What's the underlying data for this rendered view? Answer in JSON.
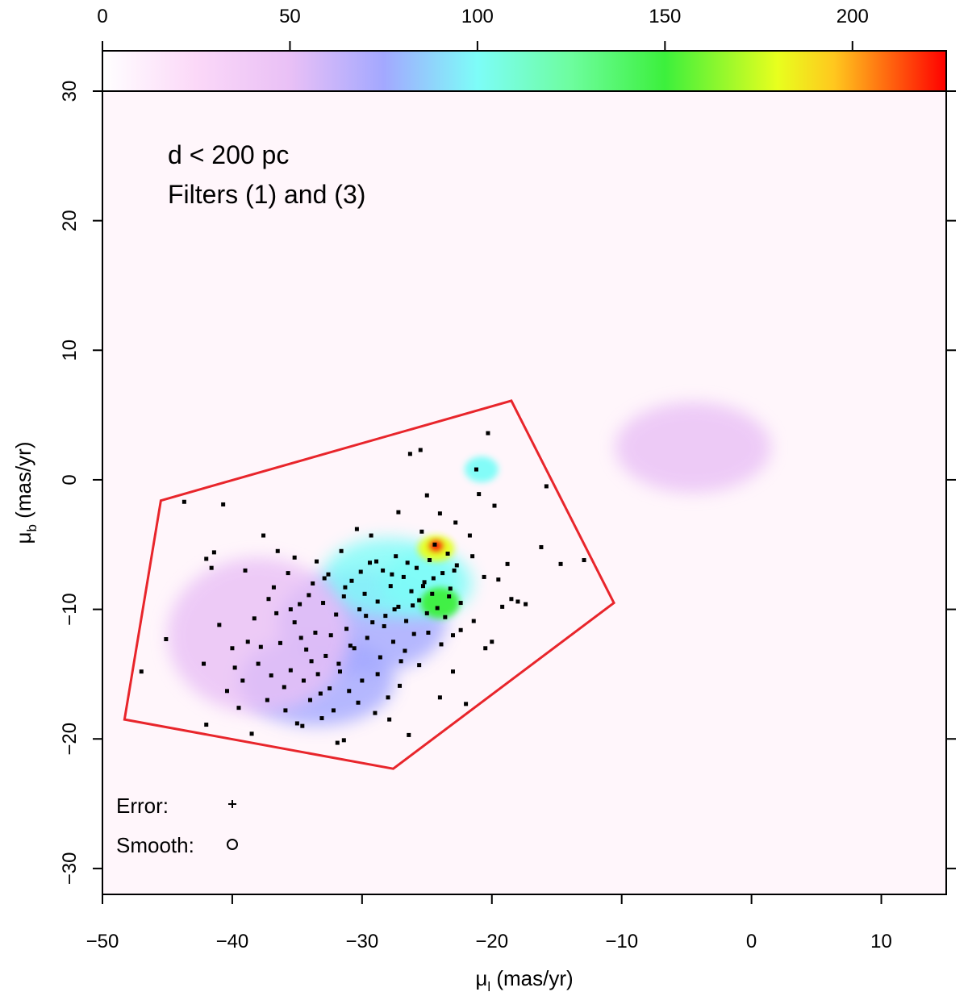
{
  "chart_data": {
    "type": "heatmap",
    "title": "",
    "xlabel": "μl (mas/yr)",
    "ylabel": "μb (mas/yr)",
    "x_label_main": "μ",
    "x_label_sub": "l",
    "x_label_unit": " (mas/yr)",
    "y_label_main": "μ",
    "y_label_sub": "b",
    "y_label_unit": " (mas/yr)",
    "xlim": [
      -50,
      15
    ],
    "ylim": [
      -32,
      30
    ],
    "x_ticks": [
      -50,
      -40,
      -30,
      -20,
      -10,
      0,
      10
    ],
    "y_ticks": [
      -30,
      -20,
      -10,
      0,
      10,
      20,
      30
    ],
    "colorbar": {
      "range": [
        0,
        225
      ],
      "ticks": [
        0,
        50,
        100,
        150,
        200
      ],
      "stops": [
        {
          "value": 0,
          "color": "#ffffff"
        },
        {
          "value": 25,
          "color": "#fbd8f8"
        },
        {
          "value": 50,
          "color": "#e9c0f6"
        },
        {
          "value": 75,
          "color": "#a3a8ff"
        },
        {
          "value": 100,
          "color": "#7dfdf8"
        },
        {
          "value": 125,
          "color": "#6dfd9e"
        },
        {
          "value": 150,
          "color": "#3cf03c"
        },
        {
          "value": 180,
          "color": "#e8ff1e"
        },
        {
          "value": 195,
          "color": "#ffc81e"
        },
        {
          "value": 225,
          "color": "#ff0000"
        }
      ]
    },
    "annotations": [
      "d < 200 pc",
      "Filters (1) and (3)"
    ],
    "legend": {
      "error_label": "Error:",
      "smooth_label": "Smooth:"
    },
    "polygon": [
      [
        -45.5,
        -1.6
      ],
      [
        -18.5,
        6.1
      ],
      [
        -10.6,
        -9.5
      ],
      [
        -27.6,
        -22.3
      ],
      [
        -48.3,
        -18.5
      ]
    ],
    "density_blobs": [
      {
        "x": -33.5,
        "y": -15.5,
        "rx": 6,
        "ry": 3.5,
        "value": 75
      },
      {
        "x": -30,
        "y": -11,
        "rx": 6.5,
        "ry": 4,
        "value": 70
      },
      {
        "x": -28,
        "y": -7.5,
        "rx": 5,
        "ry": 3,
        "value": 78
      },
      {
        "x": -25,
        "y": -8,
        "rx": 3.5,
        "ry": 2.5,
        "value": 100
      },
      {
        "x": -24,
        "y": -9.5,
        "rx": 1.5,
        "ry": 1.2,
        "value": 150
      },
      {
        "x": -24.3,
        "y": -5.3,
        "rx": 1.4,
        "ry": 1,
        "value": 170
      },
      {
        "x": -24.3,
        "y": -5.1,
        "rx": 0.5,
        "ry": 0.4,
        "value": 225
      },
      {
        "x": -20.8,
        "y": 0.8,
        "rx": 1.3,
        "ry": 1,
        "value": 90
      },
      {
        "x": -4.5,
        "y": 2.5,
        "rx": 6,
        "ry": 3.5,
        "value": 32
      },
      {
        "x": -38,
        "y": -12,
        "rx": 7,
        "ry": 6,
        "value": 30
      }
    ],
    "points": [
      [
        -47.0,
        -14.8
      ],
      [
        -45.1,
        -12.3
      ],
      [
        -43.7,
        -1.7
      ],
      [
        -42.0,
        -6.1
      ],
      [
        -41.6,
        -6.8
      ],
      [
        -41.4,
        -5.6
      ],
      [
        -41.0,
        -11.2
      ],
      [
        -40.7,
        -1.9
      ],
      [
        -40.4,
        -16.3
      ],
      [
        -40.0,
        -13.0
      ],
      [
        -39.5,
        -17.6
      ],
      [
        -39.0,
        -7.0
      ],
      [
        -38.8,
        -12.5
      ],
      [
        -38.5,
        -19.6
      ],
      [
        -38.0,
        -14.2
      ],
      [
        -37.6,
        -4.3
      ],
      [
        -37.2,
        -9.2
      ],
      [
        -37.0,
        -15.1
      ],
      [
        -36.6,
        -10.3
      ],
      [
        -36.3,
        -12.6
      ],
      [
        -36.0,
        -16.0
      ],
      [
        -35.7,
        -7.2
      ],
      [
        -35.5,
        -14.7
      ],
      [
        -35.2,
        -11.0
      ],
      [
        -35.0,
        -18.8
      ],
      [
        -34.8,
        -9.6
      ],
      [
        -34.5,
        -15.5
      ],
      [
        -34.3,
        -13.1
      ],
      [
        -34.0,
        -17.0
      ],
      [
        -33.8,
        -8.0
      ],
      [
        -33.6,
        -11.8
      ],
      [
        -33.4,
        -15.0
      ],
      [
        -33.2,
        -16.5
      ],
      [
        -33.0,
        -9.5
      ],
      [
        -32.8,
        -13.6
      ],
      [
        -32.6,
        -7.3
      ],
      [
        -32.4,
        -12.0
      ],
      [
        -32.2,
        -17.8
      ],
      [
        -32.0,
        -10.4
      ],
      [
        -31.8,
        -14.2
      ],
      [
        -31.6,
        -5.5
      ],
      [
        -31.4,
        -9.0
      ],
      [
        -31.2,
        -11.5
      ],
      [
        -31.0,
        -16.3
      ],
      [
        -30.8,
        -7.8
      ],
      [
        -30.6,
        -13.0
      ],
      [
        -30.4,
        -3.8
      ],
      [
        -30.2,
        -10.0
      ],
      [
        -30.0,
        -15.5
      ],
      [
        -29.8,
        -8.8
      ],
      [
        -29.6,
        -12.2
      ],
      [
        -29.4,
        -6.4
      ],
      [
        -29.2,
        -11.0
      ],
      [
        -29.0,
        -18.0
      ],
      [
        -28.8,
        -9.4
      ],
      [
        -28.6,
        -13.7
      ],
      [
        -28.4,
        -7.0
      ],
      [
        -28.2,
        -10.5
      ],
      [
        -28.0,
        -16.8
      ],
      [
        -27.8,
        -8.2
      ],
      [
        -27.6,
        -12.5
      ],
      [
        -27.4,
        -5.9
      ],
      [
        -27.2,
        -9.8
      ],
      [
        -27.0,
        -14.0
      ],
      [
        -26.8,
        -7.5
      ],
      [
        -26.6,
        -10.9
      ],
      [
        -26.4,
        -19.7
      ],
      [
        -26.2,
        -8.6
      ],
      [
        -26.0,
        -11.9
      ],
      [
        -25.8,
        -6.8
      ],
      [
        -25.6,
        -9.3
      ],
      [
        -25.4,
        -4.0
      ],
      [
        -25.2,
        -7.9
      ],
      [
        -25.0,
        -10.3
      ],
      [
        -24.8,
        -6.2
      ],
      [
        -24.6,
        -8.8
      ],
      [
        -24.4,
        -5.0
      ],
      [
        -24.2,
        -9.9
      ],
      [
        -24.0,
        -2.6
      ],
      [
        -23.8,
        -7.2
      ],
      [
        -23.6,
        -10.6
      ],
      [
        -23.4,
        -5.7
      ],
      [
        -23.2,
        -8.4
      ],
      [
        -23.0,
        -12.0
      ],
      [
        -22.7,
        -6.6
      ],
      [
        -22.4,
        -9.5
      ],
      [
        -22.0,
        -17.3
      ],
      [
        -21.7,
        -4.3
      ],
      [
        -21.4,
        -10.9
      ],
      [
        -21.0,
        -1.1
      ],
      [
        -20.6,
        -7.5
      ],
      [
        -20.3,
        3.6
      ],
      [
        -20.0,
        -12.5
      ],
      [
        -19.8,
        -2.0
      ],
      [
        -19.2,
        -9.8
      ],
      [
        -18.8,
        -6.5
      ],
      [
        -18.0,
        -9.4
      ],
      [
        -17.4,
        -9.6
      ],
      [
        -16.2,
        -5.2
      ],
      [
        -15.8,
        -0.5
      ],
      [
        -14.7,
        -6.5
      ],
      [
        -12.9,
        -6.2
      ],
      [
        -21.2,
        0.8
      ],
      [
        -25.5,
        2.3
      ],
      [
        -26.3,
        2.0
      ],
      [
        -36.5,
        -5.5
      ],
      [
        -37.8,
        -12.9
      ],
      [
        -39.8,
        -14.5
      ],
      [
        -42.2,
        -14.2
      ],
      [
        -42.0,
        -18.9
      ],
      [
        -34.6,
        -19.0
      ],
      [
        -31.9,
        -20.3
      ],
      [
        -31.4,
        -20.1
      ],
      [
        -27.9,
        -18.5
      ],
      [
        -24.0,
        -16.8
      ],
      [
        -25.6,
        -14.3
      ],
      [
        -23.0,
        -14.8
      ],
      [
        -22.4,
        -11.6
      ],
      [
        -20.5,
        -13.0
      ],
      [
        -19.5,
        -7.7
      ],
      [
        -18.5,
        -9.2
      ],
      [
        -21.5,
        -5.9
      ],
      [
        -22.8,
        -3.3
      ],
      [
        -25.0,
        -1.2
      ],
      [
        -27.2,
        -2.5
      ],
      [
        -29.3,
        -4.3
      ],
      [
        -33.5,
        -6.3
      ],
      [
        -35.2,
        -6.0
      ],
      [
        -36.8,
        -8.3
      ],
      [
        -38.3,
        -10.7
      ],
      [
        -39.2,
        -15.5
      ],
      [
        -37.3,
        -17.0
      ],
      [
        -35.9,
        -17.8
      ],
      [
        -33.1,
        -18.4
      ],
      [
        -30.3,
        -17.2
      ],
      [
        -28.8,
        -15.0
      ],
      [
        -27.1,
        -15.9
      ],
      [
        -26.7,
        -13.2
      ],
      [
        -24.9,
        -11.8
      ],
      [
        -23.9,
        -12.7
      ],
      [
        -23.3,
        -9.0
      ],
      [
        -22.9,
        -7.0
      ],
      [
        -24.5,
        -7.6
      ],
      [
        -25.3,
        -8.2
      ],
      [
        -26.1,
        -9.7
      ],
      [
        -27.5,
        -10.0
      ],
      [
        -28.3,
        -11.3
      ],
      [
        -29.7,
        -10.5
      ],
      [
        -30.9,
        -12.8
      ],
      [
        -31.7,
        -14.8
      ],
      [
        -32.5,
        -16.1
      ],
      [
        -33.9,
        -14.0
      ],
      [
        -34.7,
        -12.2
      ],
      [
        -35.5,
        -10.0
      ],
      [
        -34.1,
        -8.9
      ],
      [
        -32.9,
        -7.6
      ],
      [
        -31.3,
        -8.3
      ],
      [
        -30.1,
        -7.1
      ],
      [
        -28.9,
        -6.3
      ],
      [
        -27.7,
        -7.3
      ],
      [
        -26.5,
        -6.4
      ]
    ]
  }
}
